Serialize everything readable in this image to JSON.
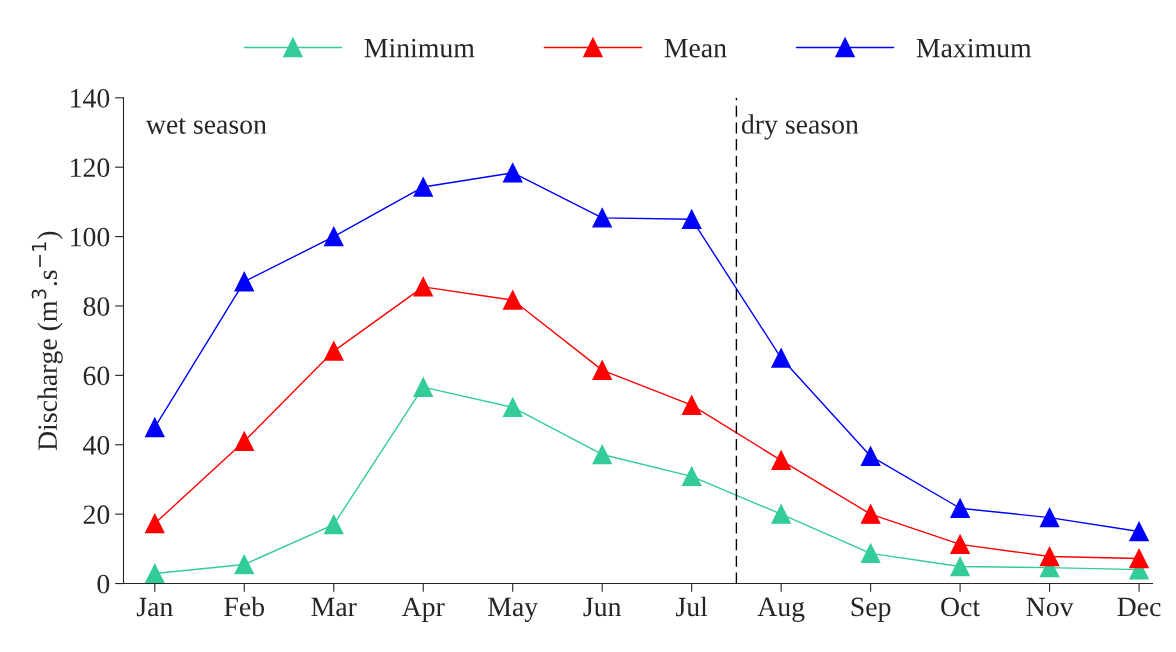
{
  "chart_data": {
    "type": "line",
    "ylabel": "Discharge (m$^{3}$.s$^{−1}$)",
    "categories": [
      "Jan",
      "Feb",
      "Mar",
      "Apr",
      "May",
      "Jun",
      "Jul",
      "Aug",
      "Sep",
      "Oct",
      "Nov",
      "Dec"
    ],
    "series": [
      {
        "name": "Minimum",
        "color": "#33cc99",
        "values": [
          2.9,
          5.5,
          17,
          56.6,
          50.8,
          37.2,
          30.9,
          20,
          8.7,
          4.9,
          4.6,
          4
        ]
      },
      {
        "name": "Mean",
        "color": "#ff0000",
        "values": [
          17.3,
          41,
          67,
          85.5,
          81.7,
          61.5,
          51.4,
          35.5,
          20,
          11.3,
          7.8,
          7.2
        ]
      },
      {
        "name": "Maximum",
        "color": "#0000ff",
        "values": [
          45,
          87,
          100,
          114.3,
          118.4,
          105.4,
          105,
          65,
          36.7,
          21.7,
          19,
          15
        ]
      }
    ],
    "ylim": [
      0,
      140
    ],
    "yticks": [
      0,
      20,
      40,
      60,
      80,
      100,
      120,
      140
    ],
    "annotations": [
      "wet season",
      "dry season"
    ],
    "marker": "triangle",
    "line_style": "solid",
    "grid": false,
    "legend": "top"
  }
}
